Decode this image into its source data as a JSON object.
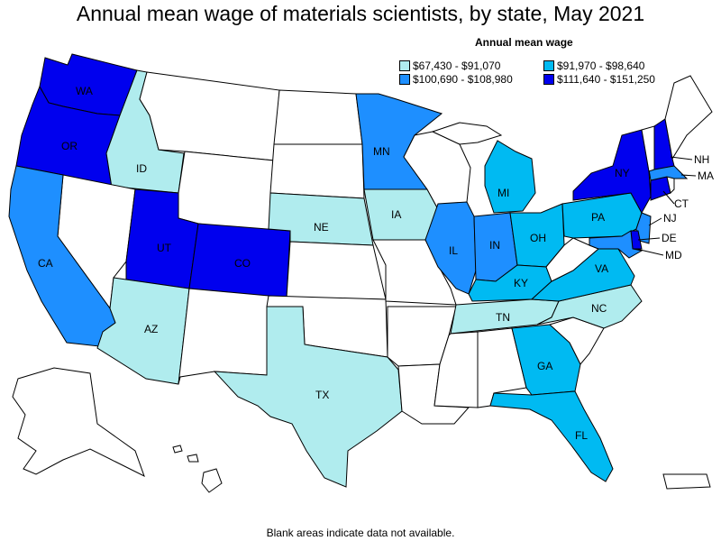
{
  "title": "Annual mean wage of materials scientists, by state, May 2021",
  "legend": {
    "title": "Annual mean wage",
    "items": [
      {
        "label": "$67,430 - $91,070",
        "color": "#b0ecee"
      },
      {
        "label": "$91,970 - $98,640",
        "color": "#00baf2"
      },
      {
        "label": "$100,690 - $108,980",
        "color": "#1e8fff"
      },
      {
        "label": "$111,640 - $151,250",
        "color": "#0000ee"
      }
    ]
  },
  "footnote": "Blank areas indicate data not available.",
  "colors": {
    "blank": "#ffffff",
    "border": "#000000"
  },
  "states": [
    {
      "abbr": "WA",
      "tier": 3
    },
    {
      "abbr": "OR",
      "tier": 3
    },
    {
      "abbr": "ID",
      "tier": 0
    },
    {
      "abbr": "CA",
      "tier": 2
    },
    {
      "abbr": "UT",
      "tier": 3
    },
    {
      "abbr": "CO",
      "tier": 3
    },
    {
      "abbr": "AZ",
      "tier": 0
    },
    {
      "abbr": "NE",
      "tier": 0
    },
    {
      "abbr": "TX",
      "tier": 0
    },
    {
      "abbr": "MN",
      "tier": 2
    },
    {
      "abbr": "IA",
      "tier": 0
    },
    {
      "abbr": "IL",
      "tier": 2
    },
    {
      "abbr": "IN",
      "tier": 2
    },
    {
      "abbr": "MI",
      "tier": 1
    },
    {
      "abbr": "OH",
      "tier": 1
    },
    {
      "abbr": "KY",
      "tier": 1
    },
    {
      "abbr": "TN",
      "tier": 0
    },
    {
      "abbr": "GA",
      "tier": 1
    },
    {
      "abbr": "FL",
      "tier": 1
    },
    {
      "abbr": "NC",
      "tier": 0
    },
    {
      "abbr": "VA",
      "tier": 1
    },
    {
      "abbr": "PA",
      "tier": 1
    },
    {
      "abbr": "NY",
      "tier": 3
    },
    {
      "abbr": "NJ",
      "tier": 2
    },
    {
      "abbr": "DE",
      "tier": 3
    },
    {
      "abbr": "MD",
      "tier": 2
    },
    {
      "abbr": "CT",
      "tier": 3
    },
    {
      "abbr": "MA",
      "tier": 2
    },
    {
      "abbr": "NH",
      "tier": 3
    }
  ]
}
